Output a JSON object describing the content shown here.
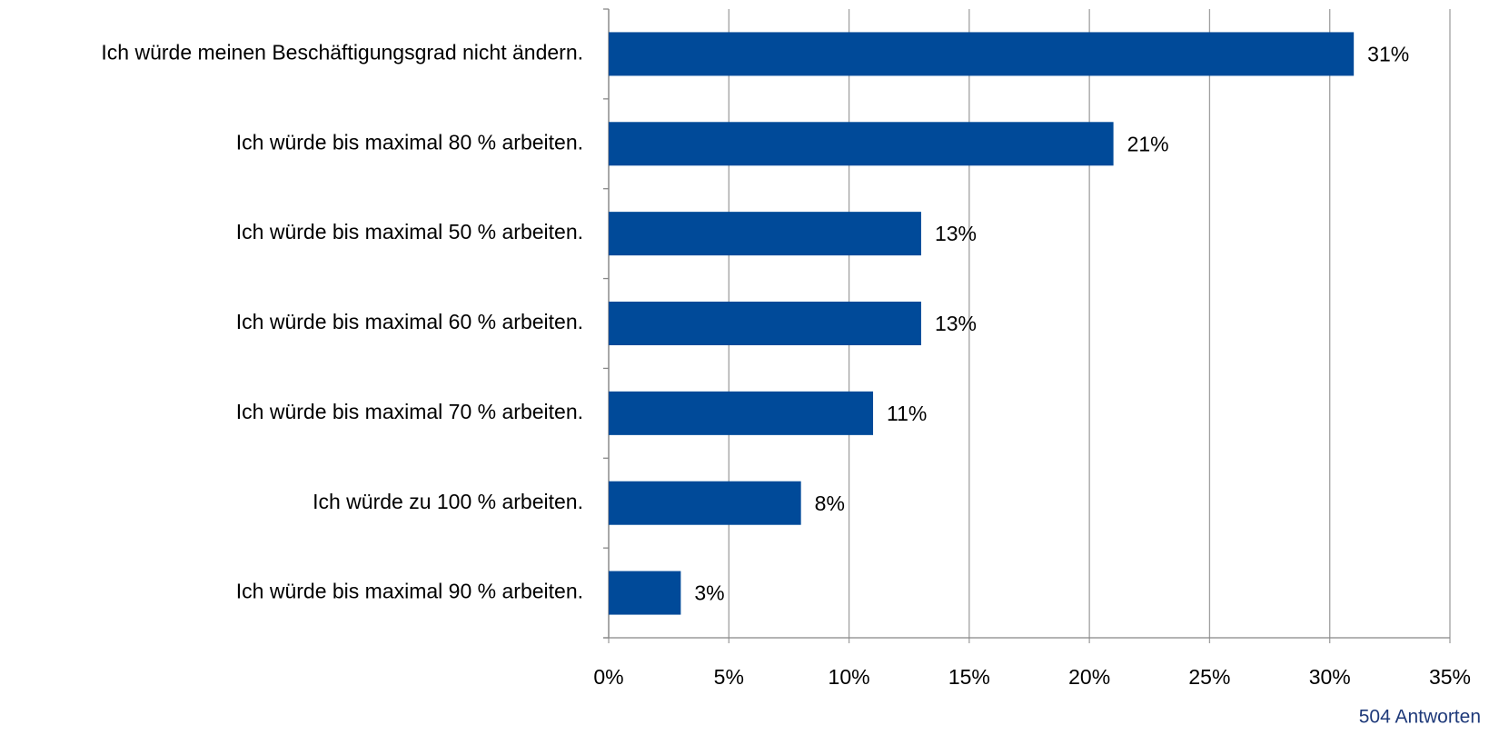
{
  "chart_data": {
    "type": "hbar",
    "categories": [
      "Ich würde meinen Beschäftigungsgrad nicht ändern.",
      "Ich würde bis maximal 80 % arbeiten.",
      "Ich würde bis maximal 50 % arbeiten.",
      "Ich würde bis maximal 60 % arbeiten.",
      "Ich würde bis maximal 70 % arbeiten.",
      "Ich würde zu 100 % arbeiten.",
      "Ich würde bis maximal 90 % arbeiten."
    ],
    "values": [
      31,
      21,
      13,
      13,
      11,
      8,
      3
    ],
    "value_labels": [
      "31%",
      "21%",
      "13%",
      "13%",
      "11%",
      "8%",
      "3%"
    ],
    "color": "#004a99",
    "xlim": [
      0,
      35
    ],
    "xticks": [
      {
        "value": 0,
        "label": "0%"
      },
      {
        "value": 5,
        "label": "5%"
      },
      {
        "value": 10,
        "label": "10%"
      },
      {
        "value": 15,
        "label": "15%"
      },
      {
        "value": 20,
        "label": "20%"
      },
      {
        "value": 25,
        "label": "25%"
      },
      {
        "value": 30,
        "label": "30%"
      },
      {
        "value": 35,
        "label": "35%"
      }
    ],
    "grid": true,
    "annotation": "504 Antworten"
  }
}
